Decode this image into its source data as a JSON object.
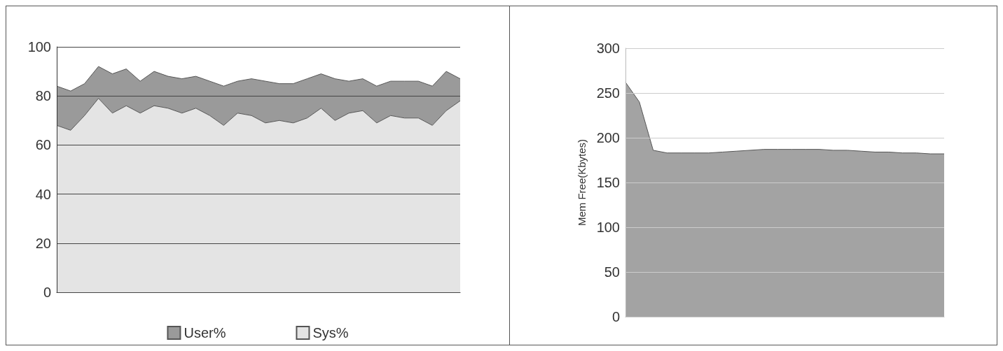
{
  "chart_data": [
    {
      "type": "area",
      "stacked": true,
      "categories": [
        null,
        null,
        null,
        null,
        null,
        null,
        null,
        null,
        null,
        null,
        null,
        null,
        null,
        null,
        null,
        null,
        null,
        null,
        null,
        null,
        null,
        null,
        null,
        null,
        null,
        null,
        null,
        null,
        null,
        null
      ],
      "series": [
        {
          "name": "Sys%",
          "color": "#e4e4e4",
          "values": [
            68,
            66,
            72,
            79,
            73,
            76,
            73,
            76,
            75,
            73,
            75,
            72,
            68,
            73,
            72,
            69,
            70,
            69,
            71,
            75,
            70,
            73,
            74,
            69,
            72,
            71,
            71,
            68,
            74,
            78
          ]
        },
        {
          "name": "User%",
          "color": "#9a9a9a",
          "values": [
            16,
            16,
            13,
            13,
            16,
            15,
            13,
            14,
            13,
            14,
            13,
            14,
            16,
            13,
            15,
            17,
            15,
            16,
            16,
            14,
            17,
            13,
            13,
            15,
            14,
            15,
            15,
            16,
            16,
            9
          ]
        }
      ],
      "ylim": [
        0,
        100
      ],
      "yticks": [
        0,
        20,
        40,
        60,
        80,
        100
      ],
      "grid": "y",
      "legend": "bottom",
      "tick_labels": "y"
    },
    {
      "type": "area",
      "ylabel": "Mem Free(Kbytes)",
      "categories": [
        null,
        null,
        null,
        null,
        null,
        null,
        null,
        null,
        null,
        null,
        null,
        null,
        null,
        null,
        null,
        null,
        null,
        null,
        null,
        null,
        null,
        null,
        null,
        null
      ],
      "series": [
        {
          "color": "#a3a3a3",
          "values": [
            262,
            240,
            186,
            183,
            183,
            183,
            183,
            184,
            185,
            186,
            187,
            187,
            187,
            187,
            187,
            186,
            186,
            185,
            184,
            184,
            183,
            183,
            182,
            182
          ]
        }
      ],
      "ylim": [
        0,
        300
      ],
      "yticks": [
        0,
        50,
        100,
        150,
        200,
        250,
        300
      ],
      "grid": "y",
      "tick_labels": "y"
    }
  ]
}
